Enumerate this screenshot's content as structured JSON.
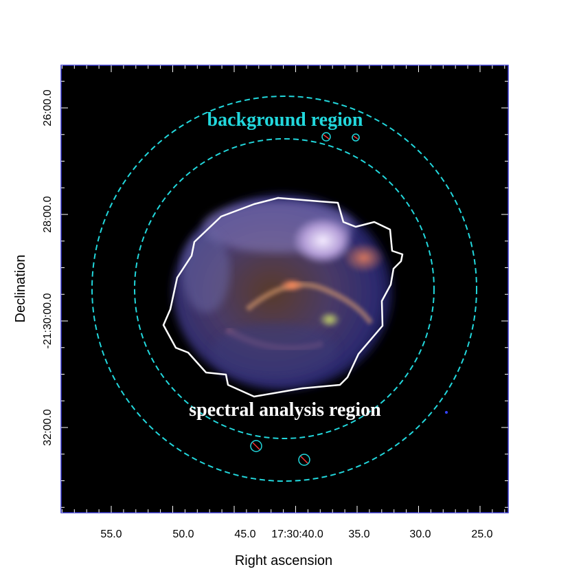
{
  "figure": {
    "x_axis_title": "Right ascension",
    "y_axis_title": "Declination",
    "x_tick_labels": [
      "55.0",
      "50.0",
      "45.0",
      "17:30:40.0",
      "35.0",
      "30.0",
      "25.0"
    ],
    "y_tick_labels": [
      "26:00.0",
      "28:00.0",
      "-21:30:00.0",
      "32:00.0"
    ],
    "annotations": {
      "background_label": "background region",
      "source_label": "spectral analysis region"
    },
    "colors": {
      "background_region": "#22d8dd",
      "source_region": "#ffffff",
      "sky": "#000000",
      "frame": "#3333cc"
    }
  }
}
